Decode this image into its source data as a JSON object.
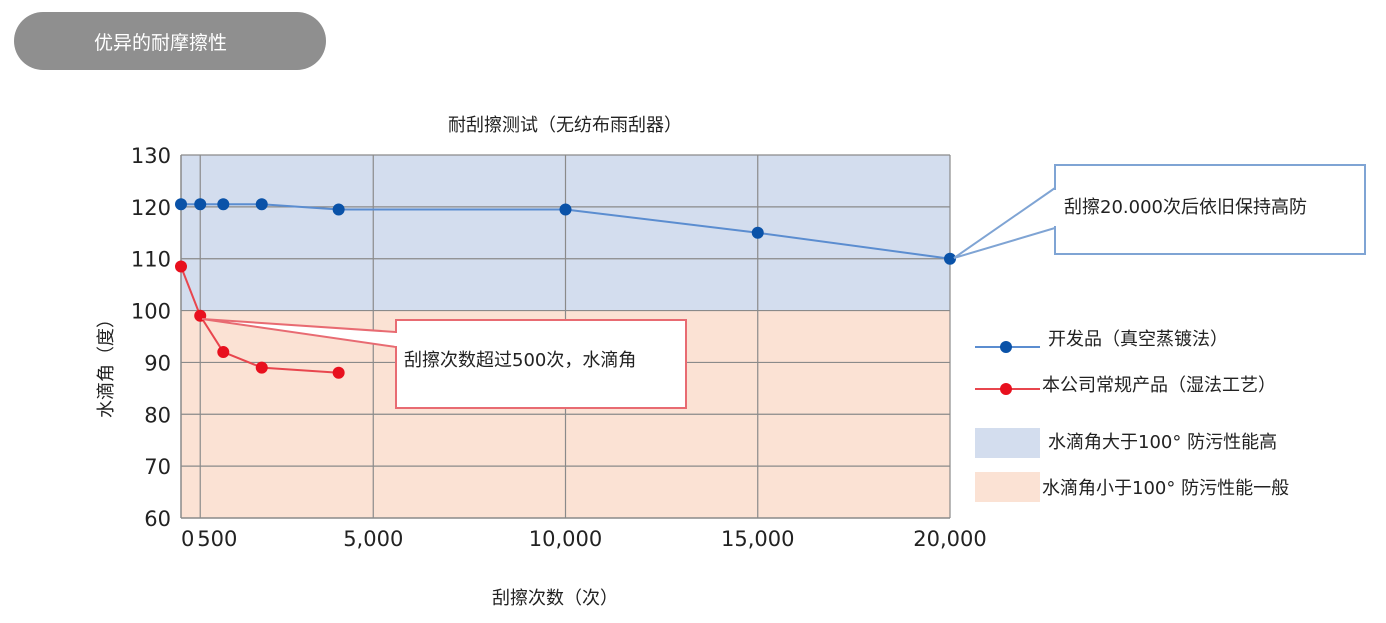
{
  "header": {
    "tab_label": "优异的耐摩擦性"
  },
  "colors": {
    "above_band": "#d3ddee",
    "below_band": "#fbe2d4",
    "developed_series": "#0a52a8",
    "developed_line": "#5b8dd0",
    "conventional_series": "#e8101e",
    "conventional_line": "#e8464e",
    "grid": "#8a8a8a"
  },
  "chart_data": {
    "type": "line",
    "title": "耐刮擦测试（无纺布雨刮器）",
    "xlabel": "刮擦次数（次）",
    "ylabel": "水滴角（度）",
    "xlim": [
      0,
      20000
    ],
    "ylim": [
      60,
      130
    ],
    "x_ticks": [
      0,
      500,
      5000,
      10000,
      15000,
      20000
    ],
    "x_tick_labels": [
      "0",
      "500",
      "5,000",
      "10,000",
      "15,000",
      "20,000"
    ],
    "x_gridlines": [
      500,
      5000,
      10000,
      15000,
      20000
    ],
    "y_ticks": [
      60,
      70,
      80,
      90,
      100,
      110,
      120,
      130
    ],
    "grid": true,
    "threshold": 100,
    "series": [
      {
        "name": "开发品（真空蒸镀法）",
        "x": [
          0,
          500,
          1100,
          2100,
          4100,
          10000,
          15000,
          20000
        ],
        "y": [
          120.5,
          120.5,
          120.5,
          120.5,
          119.5,
          119.5,
          115,
          110
        ]
      },
      {
        "name": "本公司常规产品（湿法工艺）",
        "x": [
          0,
          500,
          1100,
          2100,
          4100
        ],
        "y": [
          108.5,
          99,
          92,
          89,
          88
        ]
      }
    ],
    "bands": [
      {
        "label": "水滴角大于100° 防污性能高",
        "from": 100,
        "to": 130
      },
      {
        "label": "水滴角小于100° 防污性能一般",
        "from": 60,
        "to": 100
      }
    ],
    "callouts": [
      {
        "text": "刮擦20.000次后依旧保持高防"
      },
      {
        "text": "刮擦次数超过500次，水滴角"
      }
    ]
  }
}
